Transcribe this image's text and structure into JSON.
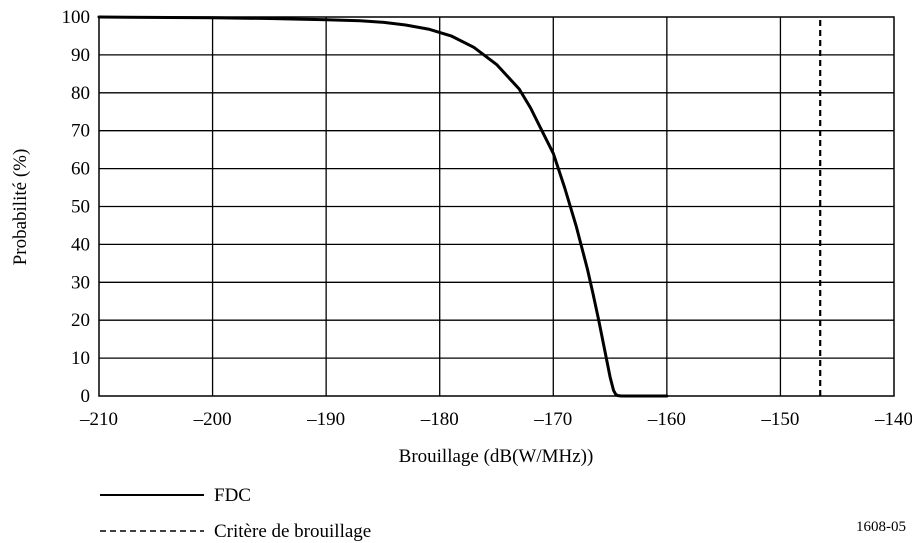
{
  "chart_data": {
    "type": "line",
    "xlabel": "Brouillage (dB(W/MHz))",
    "ylabel": "Probabilité (%)",
    "xlim": [
      -210,
      -140
    ],
    "ylim": [
      0,
      100
    ],
    "x_ticks": [
      -210,
      -200,
      -190,
      -180,
      -170,
      -160,
      -150,
      -140
    ],
    "x_tick_labels": [
      "–210",
      "–200",
      "–190",
      "–180",
      "–170",
      "–160",
      "–150",
      "–140"
    ],
    "y_ticks": [
      0,
      10,
      20,
      30,
      40,
      50,
      60,
      70,
      80,
      90,
      100
    ],
    "y_tick_labels": [
      "0",
      "10",
      "20",
      "30",
      "40",
      "50",
      "60",
      "70",
      "80",
      "90",
      "100"
    ],
    "grid": true,
    "legend_position": "bottom-left",
    "series": [
      {
        "name": "FDC",
        "style": "solid",
        "x": [
          -210,
          -200,
          -195,
          -190,
          -187,
          -185,
          -183,
          -181,
          -179,
          -177,
          -175,
          -173,
          -172,
          -171,
          -170,
          -169,
          -168,
          -167,
          -166.5,
          -166,
          -165.5,
          -165,
          -164.7,
          -164.5,
          -164.3,
          -164,
          -163,
          -162,
          -161,
          -160
        ],
        "y": [
          100,
          99.8,
          99.6,
          99.3,
          99.0,
          98.6,
          97.9,
          96.8,
          95.0,
          92.0,
          87.5,
          81.0,
          76.0,
          70.0,
          64.0,
          55.0,
          45.0,
          33.5,
          27.0,
          20.0,
          12.5,
          5.0,
          1.5,
          0.4,
          0.1,
          0,
          0,
          0,
          0,
          0
        ]
      },
      {
        "name": "Critère de brouillage",
        "style": "dashed",
        "x": [
          -146.5,
          -146.5
        ],
        "y": [
          0,
          100
        ]
      }
    ]
  },
  "figure_id": "1608-05"
}
